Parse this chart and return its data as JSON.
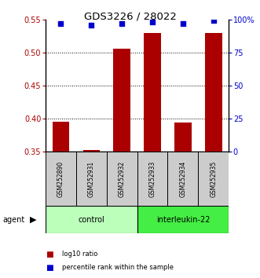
{
  "title": "GDS3226 / 28022",
  "samples": [
    "GSM252890",
    "GSM252931",
    "GSM252932",
    "GSM252933",
    "GSM252934",
    "GSM252935"
  ],
  "log10_ratio": [
    0.395,
    0.352,
    0.506,
    0.53,
    0.394,
    0.53
  ],
  "percentile_rank": [
    97,
    96,
    97,
    98,
    97,
    99
  ],
  "bar_color": "#aa0000",
  "dot_color": "#0000cc",
  "ylim_left": [
    0.35,
    0.55
  ],
  "ylim_right": [
    0,
    100
  ],
  "yticks_left": [
    0.35,
    0.4,
    0.45,
    0.5,
    0.55
  ],
  "yticks_right": [
    0,
    25,
    50,
    75,
    100
  ],
  "ytick_labels_right": [
    "0",
    "25",
    "50",
    "75",
    "100%"
  ],
  "grid_lines": [
    0.4,
    0.45,
    0.5
  ],
  "groups": [
    {
      "label": "control",
      "indices": [
        0,
        1,
        2
      ],
      "color": "#bbffbb"
    },
    {
      "label": "interleukin-22",
      "indices": [
        3,
        4,
        5
      ],
      "color": "#44ee44"
    }
  ],
  "agent_label": "agent",
  "legend_bar_label": "log10 ratio",
  "legend_dot_label": "percentile rank within the sample",
  "bar_width": 0.55,
  "baseline": 0.35
}
